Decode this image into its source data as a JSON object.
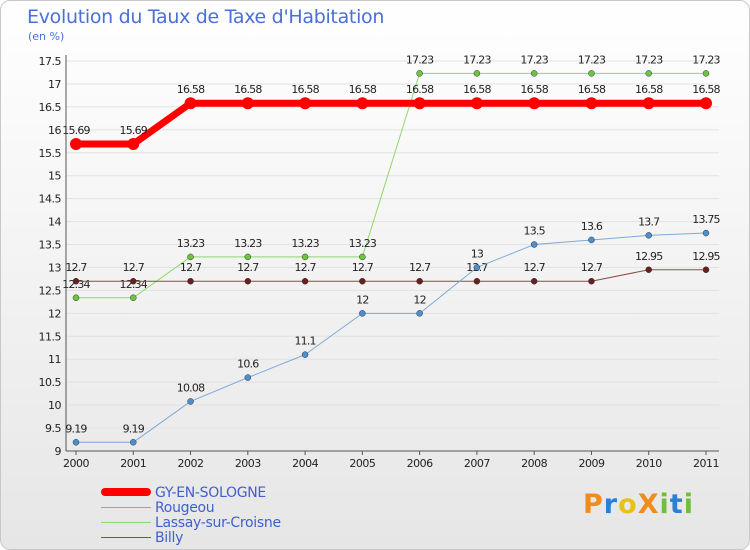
{
  "title": "Evolution du Taux de Taxe d'Habitation",
  "unit": "(en %)",
  "logo": {
    "text": "ProXiti",
    "colors": [
      "#f08c1c",
      "#2a7fd8",
      "#e8c21a",
      "#6fbf3a"
    ]
  },
  "chart_data": {
    "type": "line",
    "title": "Evolution du Taux de Taxe d'Habitation",
    "xlabel": "",
    "ylabel": "(en %)",
    "ylim": [
      9,
      17.5
    ],
    "yticks": [
      "9",
      "9.5",
      "10",
      "10.5",
      "11",
      "11.5",
      "12",
      "12.5",
      "13",
      "13.5",
      "14",
      "14.5",
      "15",
      "15.5",
      "16",
      "16.5",
      "17",
      "17.5"
    ],
    "grid": "horizontal",
    "legend_position": "bottom-left",
    "x": [
      "2000",
      "2001",
      "2002",
      "2003",
      "2004",
      "2005",
      "2006",
      "2007",
      "2008",
      "2009",
      "2010",
      "2011"
    ],
    "series": [
      {
        "name": "Lassay-sur-Croisne",
        "color": "#8fd86a",
        "stroke": 1,
        "marker": "#6cc63a",
        "values": [
          12.34,
          12.34,
          13.23,
          13.23,
          13.23,
          13.23,
          17.23,
          17.23,
          17.23,
          17.23,
          17.23,
          17.23
        ],
        "labels": [
          "12.34",
          "12.34",
          "13.23",
          "13.23",
          "13.23",
          "13.23",
          "17.23",
          "17.23",
          "17.23",
          "17.23",
          "17.23",
          "17.23"
        ]
      },
      {
        "name": "Billy",
        "color": "#8b4a4a",
        "stroke": 1,
        "marker": "#6a1f1f",
        "values": [
          12.7,
          12.7,
          12.7,
          12.7,
          12.7,
          12.7,
          12.7,
          12.7,
          12.7,
          12.7,
          12.95,
          12.95
        ],
        "labels": [
          "12.7",
          "12.7",
          "12.7",
          "12.7",
          "12.7",
          "12.7",
          "12.7",
          "12.7",
          "12.7",
          "12.7",
          "12.95",
          "12.95"
        ]
      },
      {
        "name": "Rougeou",
        "color": "#7fa8d6",
        "stroke": 1,
        "marker": "#4a8fd0",
        "values": [
          9.19,
          9.19,
          10.08,
          10.6,
          11.1,
          12,
          12,
          13,
          13.5,
          13.6,
          13.7,
          13.75
        ],
        "labels": [
          "9.19",
          "9.19",
          "10.08",
          "10.6",
          "11.1",
          "12",
          "12",
          "13",
          "13.5",
          "13.6",
          "13.7",
          "13.75"
        ]
      },
      {
        "name": "GY-EN-SOLOGNE",
        "color": "#ff0000",
        "stroke": 7,
        "marker": "#ff0000",
        "values": [
          15.69,
          15.69,
          16.58,
          16.58,
          16.58,
          16.58,
          16.58,
          16.58,
          16.58,
          16.58,
          16.58,
          16.58
        ],
        "labels": [
          "15.69",
          "15.69",
          "16.58",
          "16.58",
          "16.58",
          "16.58",
          "16.58",
          "16.58",
          "16.58",
          "16.58",
          "16.58",
          "16.58"
        ]
      }
    ]
  },
  "legend": [
    {
      "name": "GY-EN-SOLOGNE",
      "color": "#ff0000",
      "thick": 8
    },
    {
      "name": "Rougeou",
      "color": "#7fa8d6",
      "thick": 1
    },
    {
      "name": "Lassay-sur-Croisne",
      "color": "#8fd86a",
      "thick": 1
    },
    {
      "name": "Billy",
      "color": "#8b4a4a",
      "thick": 1
    }
  ]
}
